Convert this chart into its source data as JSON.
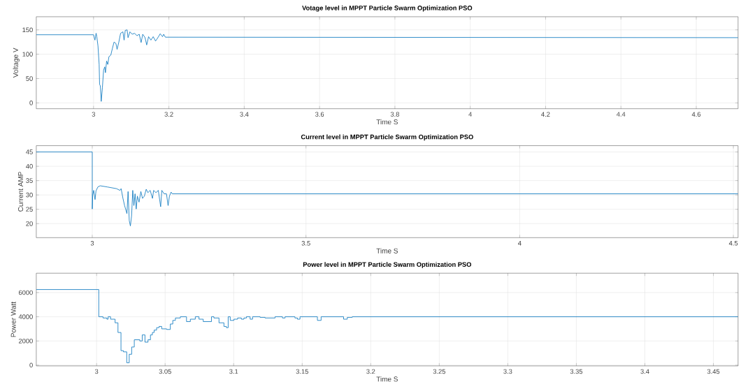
{
  "chart_data": [
    {
      "type": "line",
      "title": "Votage level in MPPT Particle Swarm Optimization PSO",
      "xlabel": "Time S",
      "ylabel": "Voltage V",
      "color": "#0072bd",
      "grid": true,
      "xlim": [
        2.848,
        4.711
      ],
      "ylim": [
        -12,
        177
      ],
      "xticks": [
        3,
        3.2,
        3.4,
        3.6,
        3.8,
        4,
        4.2,
        4.4,
        4.6
      ],
      "yticks": [
        0,
        50,
        100,
        150
      ],
      "x": [
        2.848,
        3.0,
        3.0037,
        3.0068,
        3.0087,
        3.0118,
        3.0149,
        3.0161,
        3.018,
        3.0204,
        3.0235,
        3.0266,
        3.0297,
        3.0316,
        3.0347,
        3.0378,
        3.0409,
        3.0458,
        3.0501,
        3.0545,
        3.0594,
        3.0625,
        3.0669,
        3.0718,
        3.078,
        3.0811,
        3.0842,
        3.0891,
        3.0916,
        3.0966,
        3.1028,
        3.1089,
        3.1151,
        3.1213,
        3.1263,
        3.1306,
        3.1368,
        3.1411,
        3.1461,
        3.1523,
        3.1584,
        3.1646,
        3.1708,
        3.177,
        3.1832,
        3.1863,
        3.1907,
        4.711
      ],
      "values": [
        140,
        140,
        129,
        143,
        136,
        117,
        79,
        38,
        35,
        3,
        31,
        67,
        74,
        62,
        86,
        79,
        95,
        98,
        112,
        125,
        122,
        110,
        124,
        143,
        146,
        129,
        149,
        150,
        134,
        146,
        141,
        143,
        138,
        141,
        124,
        141,
        134,
        119,
        136,
        129,
        136,
        127,
        134,
        142,
        136,
        141,
        135,
        134
      ]
    },
    {
      "type": "line",
      "title": "Current level in MPPT Particle Swarm Optimization  PSO",
      "xlabel": "Time S",
      "ylabel": "Current AMP",
      "color": "#0072bd",
      "grid": true,
      "xlim": [
        2.869,
        4.511
      ],
      "ylim": [
        15.1,
        47.2
      ],
      "xticks": [
        3,
        3.5,
        4,
        4.5
      ],
      "yticks": [
        20,
        25,
        30,
        35,
        40,
        45
      ],
      "x": [
        2.869,
        3.0,
        3.0,
        3.0011,
        3.0033,
        3.0065,
        3.0087,
        3.0131,
        3.0185,
        3.0348,
        3.0566,
        3.0647,
        3.0675,
        3.0718,
        3.0756,
        3.0811,
        3.0838,
        3.0865,
        3.0892,
        3.092,
        3.0947,
        3.0974,
        3.1001,
        3.1028,
        3.1055,
        3.1094,
        3.1137,
        3.1175,
        3.1219,
        3.1262,
        3.1301,
        3.1355,
        3.1409,
        3.1436,
        3.1491,
        3.1545,
        3.16,
        3.1627,
        3.1681,
        3.1736,
        3.1774,
        3.1806,
        3.1844,
        3.1872,
        4.511
      ],
      "values": [
        45,
        45,
        25.1,
        30,
        31.6,
        28.4,
        31.4,
        32.8,
        33.2,
        32.8,
        32.2,
        31.6,
        32.2,
        28.8,
        26.3,
        23.5,
        31.2,
        21.1,
        19.2,
        22.7,
        31.6,
        26.3,
        30.4,
        25.1,
        29.6,
        27.5,
        31.2,
        28.8,
        29.6,
        32,
        30.8,
        31.6,
        28.8,
        31.6,
        30.8,
        31.6,
        25.9,
        31.6,
        30.4,
        30.4,
        26.3,
        29.6,
        31,
        30.4,
        30.4
      ]
    },
    {
      "type": "step",
      "title": "Power level in MPPT Particle Swarm Optimization  PSO",
      "xlabel": "Time S",
      "ylabel": "Power Watt",
      "color": "#0072bd",
      "grid": true,
      "xlim": [
        2.956,
        3.468
      ],
      "ylim": [
        -60,
        7600
      ],
      "xticks": [
        3,
        3.05,
        3.1,
        3.15,
        3.2,
        3.25,
        3.3,
        3.35,
        3.4,
        3.45
      ],
      "yticks": [
        0,
        2000,
        4000,
        6000
      ],
      "x": [
        2.956,
        3.0016,
        3.0047,
        3.0075,
        3.0084,
        3.0102,
        3.0135,
        3.0156,
        3.0178,
        3.0196,
        3.022,
        3.0238,
        3.0256,
        3.0275,
        3.0315,
        3.0333,
        3.0353,
        3.0375,
        3.0393,
        3.0407,
        3.042,
        3.0438,
        3.0456,
        3.0475,
        3.0511,
        3.0538,
        3.0556,
        3.0575,
        3.0611,
        3.0656,
        3.0684,
        3.072,
        3.0747,
        3.0778,
        3.0838,
        3.0856,
        3.0893,
        3.0929,
        3.0947,
        3.096,
        3.0975,
        3.1002,
        3.1029,
        3.1056,
        3.1075,
        3.1093,
        3.112,
        3.1138,
        3.1193,
        3.1229,
        3.1284,
        3.1302,
        3.1356,
        3.1375,
        3.1447,
        3.1465,
        3.1484,
        3.1611,
        3.1638,
        3.1802,
        3.1829,
        3.1865,
        3.468
      ],
      "values": [
        6250,
        4000,
        3900,
        3800,
        4000,
        3800,
        3500,
        2700,
        1200,
        1100,
        200,
        900,
        1500,
        2100,
        2000,
        2500,
        1900,
        2100,
        2500,
        2700,
        2900,
        3100,
        3200,
        3000,
        2950,
        3400,
        3700,
        3900,
        4000,
        3600,
        3800,
        4000,
        3800,
        3600,
        4000,
        3900,
        3500,
        3200,
        3100,
        4000,
        3700,
        3800,
        3900,
        3800,
        3900,
        4000,
        3800,
        4000,
        3950,
        3900,
        3900,
        4000,
        3900,
        4000,
        3900,
        3800,
        4000,
        3700,
        4000,
        3800,
        3950,
        4000,
        4000
      ]
    }
  ]
}
